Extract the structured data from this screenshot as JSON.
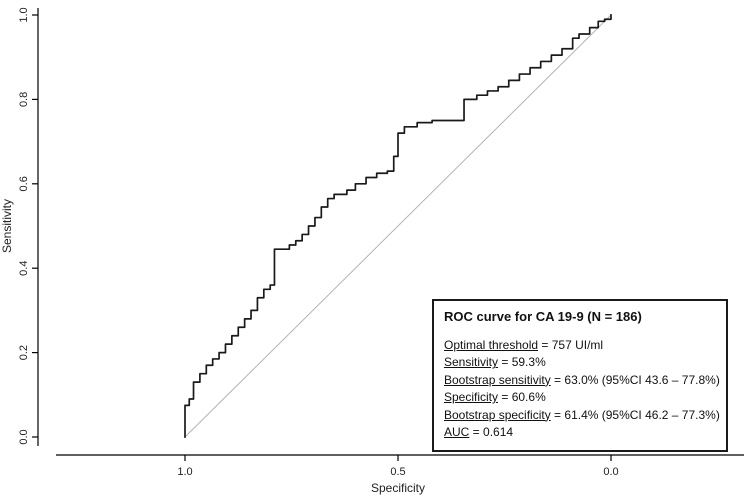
{
  "figure": {
    "background": "#ffffff",
    "curve_color": "#1a1a1a",
    "reference_color": "#b3b3b3",
    "axis_color": "#000000"
  },
  "stats_box": {
    "title": "ROC curve for CA 19-9 (N = 186)",
    "lines": [
      {
        "label": "Optimal threshold",
        "value": " = 757 UI/ml"
      },
      {
        "label": "Sensitivity",
        "value": " = 59.3%"
      },
      {
        "label": "Bootstrap sensitivity",
        "value": " = 63.0% (95%CI 43.6 – 77.8%)"
      },
      {
        "label": "Specificity",
        "value": " = 60.6%"
      },
      {
        "label": "Bootstrap specificity",
        "value": " = 61.4% (95%CI 46.2 – 77.3%)"
      },
      {
        "label": "AUC",
        "value": " = 0.614"
      }
    ]
  },
  "chart_data": {
    "type": "line",
    "subtype": "roc-step-curve",
    "title": "",
    "xlabel": "Specificity",
    "ylabel": "Sensitivity",
    "x_ticks": [
      1.0,
      0.5,
      0.0
    ],
    "y_ticks": [
      0.0,
      0.2,
      0.4,
      0.6,
      0.8,
      1.0
    ],
    "xlim": [
      1.0,
      0.0
    ],
    "ylim": [
      0.0,
      1.0
    ],
    "x_axis_reversed": true,
    "grid": false,
    "legend": "none",
    "reference_line": {
      "from": [
        1.0,
        0.0
      ],
      "to": [
        0.0,
        1.0
      ],
      "color": "#b3b3b3"
    },
    "series": [
      {
        "name": "ROC curve for CA 19-9 (N = 186)",
        "color": "#1a1a1a",
        "step": true,
        "auc": 0.614,
        "points": [
          [
            1.0,
            0.0
          ],
          [
            1.0,
            0.075
          ],
          [
            0.99,
            0.09
          ],
          [
            0.98,
            0.13
          ],
          [
            0.965,
            0.15
          ],
          [
            0.95,
            0.17
          ],
          [
            0.935,
            0.185
          ],
          [
            0.92,
            0.2
          ],
          [
            0.905,
            0.22
          ],
          [
            0.89,
            0.24
          ],
          [
            0.875,
            0.26
          ],
          [
            0.86,
            0.28
          ],
          [
            0.845,
            0.3
          ],
          [
            0.83,
            0.33
          ],
          [
            0.815,
            0.35
          ],
          [
            0.8,
            0.36
          ],
          [
            0.79,
            0.445
          ],
          [
            0.755,
            0.455
          ],
          [
            0.74,
            0.465
          ],
          [
            0.725,
            0.48
          ],
          [
            0.71,
            0.5
          ],
          [
            0.695,
            0.52
          ],
          [
            0.68,
            0.545
          ],
          [
            0.665,
            0.565
          ],
          [
            0.65,
            0.575
          ],
          [
            0.62,
            0.585
          ],
          [
            0.6,
            0.6
          ],
          [
            0.575,
            0.615
          ],
          [
            0.55,
            0.625
          ],
          [
            0.525,
            0.63
          ],
          [
            0.51,
            0.665
          ],
          [
            0.5,
            0.72
          ],
          [
            0.485,
            0.735
          ],
          [
            0.455,
            0.745
          ],
          [
            0.42,
            0.75
          ],
          [
            0.36,
            0.75
          ],
          [
            0.345,
            0.8
          ],
          [
            0.315,
            0.81
          ],
          [
            0.29,
            0.82
          ],
          [
            0.265,
            0.83
          ],
          [
            0.24,
            0.845
          ],
          [
            0.215,
            0.86
          ],
          [
            0.19,
            0.875
          ],
          [
            0.165,
            0.89
          ],
          [
            0.14,
            0.905
          ],
          [
            0.115,
            0.92
          ],
          [
            0.09,
            0.945
          ],
          [
            0.075,
            0.955
          ],
          [
            0.05,
            0.97
          ],
          [
            0.03,
            0.985
          ],
          [
            0.015,
            0.99
          ],
          [
            0.0,
            1.0
          ]
        ]
      }
    ]
  }
}
